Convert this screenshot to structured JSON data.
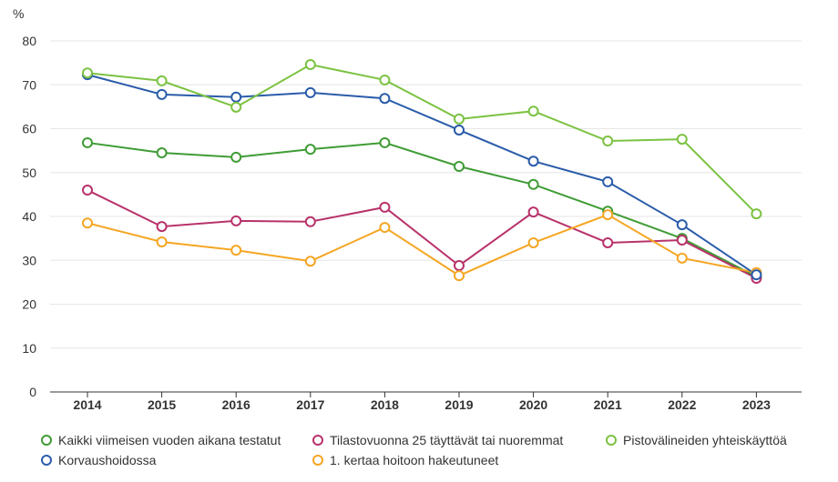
{
  "chart_data": {
    "type": "line",
    "ylabel": "%",
    "ylim": [
      0,
      80
    ],
    "yticks": [
      0,
      10,
      20,
      30,
      40,
      50,
      60,
      70,
      80
    ],
    "grid": true,
    "legend_placement": "bottom",
    "categories": [
      "2014",
      "2015",
      "2016",
      "2017",
      "2018",
      "2019",
      "2020",
      "2021",
      "2022",
      "2023"
    ],
    "series": [
      {
        "name": "Kaikki viimeisen vuoden aikana testatut",
        "color": "#3f9c35",
        "values": [
          56.8,
          54.5,
          53.5,
          55.3,
          56.8,
          51.4,
          47.3,
          41.2,
          35.0,
          26.3
        ]
      },
      {
        "name": "Korvaushoidossa",
        "color": "#2a5caa",
        "values": [
          72.3,
          67.8,
          67.2,
          68.2,
          66.9,
          59.7,
          52.6,
          47.9,
          38.1,
          26.7
        ]
      },
      {
        "name": "Tilastovuonna 25 täyttävät tai nuoremmat",
        "color": "#b8326a",
        "values": [
          46.0,
          37.7,
          39.0,
          38.8,
          42.1,
          28.8,
          41.0,
          34.0,
          34.6,
          25.9
        ]
      },
      {
        "name": "1. kertaa hoitoon hakeutuneet",
        "color": "#f5a623",
        "values": [
          38.5,
          34.2,
          32.3,
          29.8,
          37.5,
          26.5,
          34.0,
          40.4,
          30.5,
          27.2
        ]
      },
      {
        "name": "Pistovälineiden yhteiskäyttöä",
        "color": "#7cc242",
        "values": [
          72.7,
          70.9,
          64.9,
          74.6,
          71.1,
          62.2,
          64.0,
          57.2,
          57.6,
          40.6
        ]
      }
    ]
  }
}
